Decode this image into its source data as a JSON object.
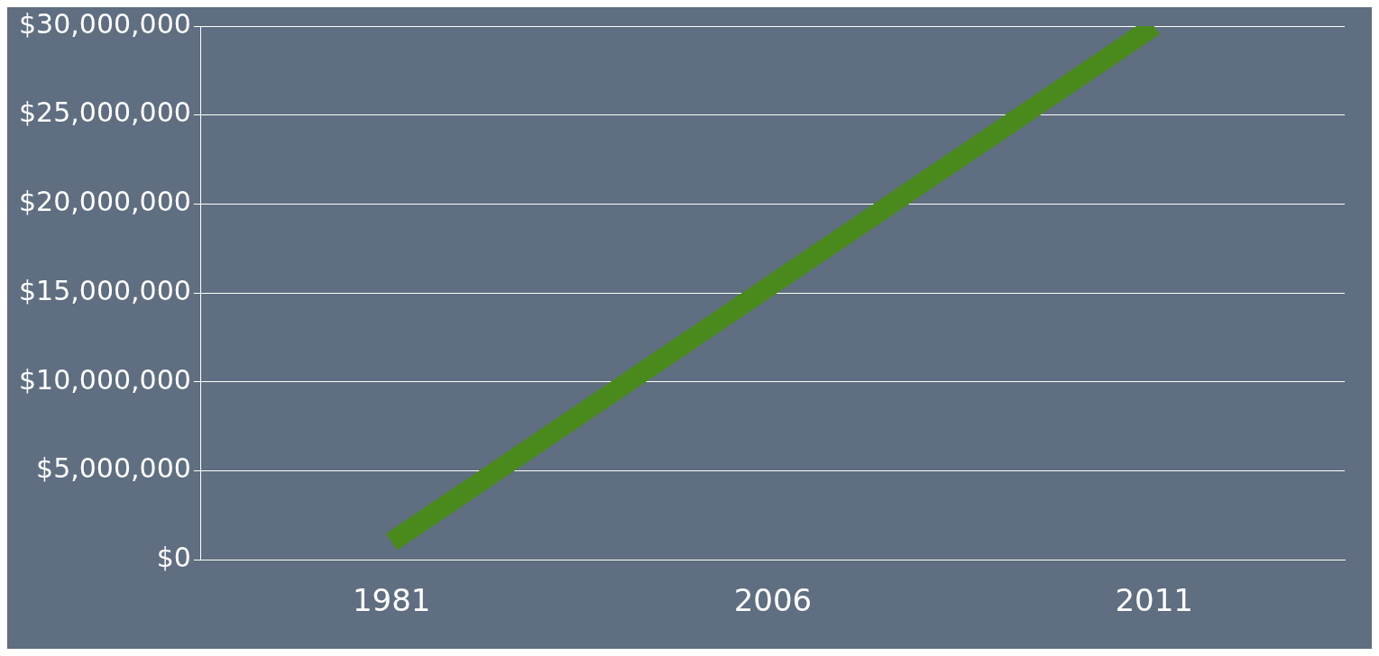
{
  "chart_data": {
    "type": "line",
    "categories": [
      "1981",
      "2006",
      "2011"
    ],
    "series": [
      {
        "color": "#4a8a1c",
        "values": [
          1000000,
          15500000,
          30000000
        ]
      }
    ],
    "ylim": [
      0,
      30000000
    ],
    "yticks": [
      {
        "value": 0,
        "label": "$0"
      },
      {
        "value": 5000000,
        "label": "$5,000,000"
      },
      {
        "value": 10000000,
        "label": "$10,000,000"
      },
      {
        "value": 15000000,
        "label": "$15,000,000"
      },
      {
        "value": 20000000,
        "label": "$20,000,000"
      },
      {
        "value": 25000000,
        "label": "$25,000,000"
      },
      {
        "value": 30000000,
        "label": "$30,000,000"
      }
    ],
    "grid": "y",
    "legend": false,
    "marker": "none",
    "line_style": "solid"
  }
}
